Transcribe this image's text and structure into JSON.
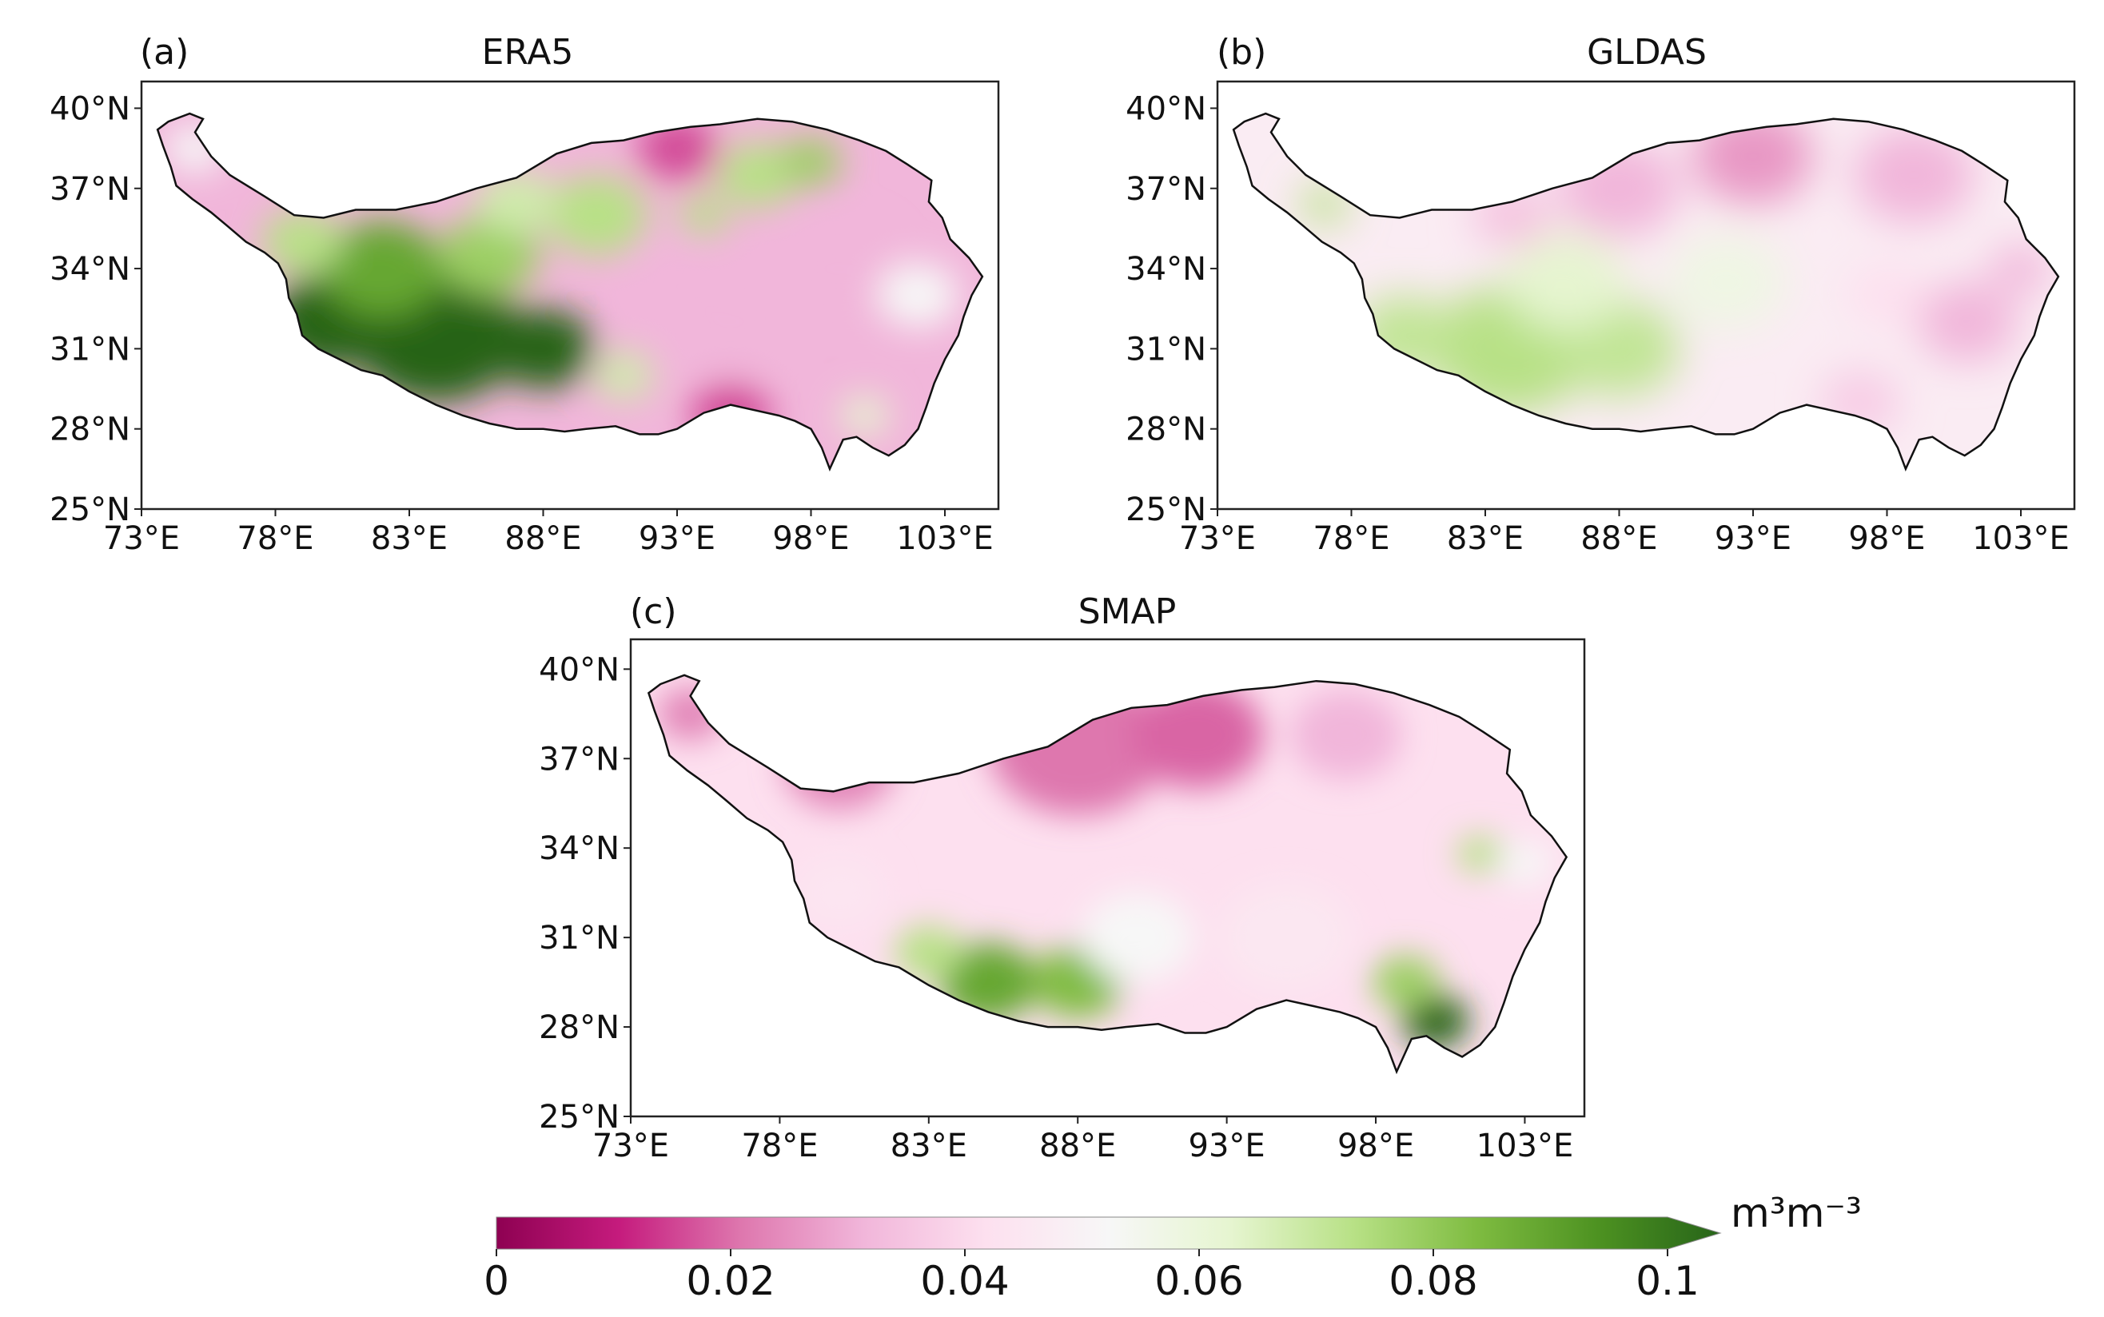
{
  "figure": {
    "panels": [
      {
        "tag": "(a)",
        "title": "ERA5",
        "x_ticks": [
          "73°E",
          "78°E",
          "83°E",
          "88°E",
          "93°E",
          "98°E",
          "103°E"
        ],
        "y_ticks": [
          "40°N",
          "37°N",
          "34°N",
          "31°N",
          "28°N",
          "25°N"
        ]
      },
      {
        "tag": "(b)",
        "title": "GLDAS",
        "x_ticks": [
          "73°E",
          "78°E",
          "83°E",
          "88°E",
          "93°E",
          "98°E",
          "103°E"
        ],
        "y_ticks": [
          "40°N",
          "37°N",
          "34°N",
          "31°N",
          "28°N",
          "25°N"
        ]
      },
      {
        "tag": "(c)",
        "title": "SMAP",
        "x_ticks": [
          "73°E",
          "78°E",
          "83°E",
          "88°E",
          "93°E",
          "98°E",
          "103°E"
        ],
        "y_ticks": [
          "40°N",
          "37°N",
          "34°N",
          "31°N",
          "28°N",
          "25°N"
        ]
      }
    ],
    "colorbar": {
      "ticks": [
        "0",
        "0.02",
        "0.04",
        "0.06",
        "0.08",
        "0.1"
      ],
      "unit": "m³m⁻³",
      "colors": [
        "#8e0152",
        "#c51b7d",
        "#de77ae",
        "#f1b6da",
        "#fde0ef",
        "#f7f7f7",
        "#e6f5d0",
        "#b8e186",
        "#7fbc41",
        "#4d9221",
        "#276419"
      ]
    }
  },
  "chart_data": [
    {
      "type": "heatmap",
      "title": "ERA5",
      "tag": "(a)",
      "xlabel": "",
      "ylabel": "",
      "xlim": [
        73,
        105
      ],
      "ylim": [
        25,
        41
      ],
      "x_ticks": [
        73,
        78,
        83,
        88,
        93,
        98,
        103
      ],
      "y_ticks": [
        25,
        28,
        31,
        34,
        37,
        40
      ],
      "value_range": [
        0,
        0.1
      ],
      "unit": "m3m-3",
      "pattern": "high (~0.1) over western/southern plateau (80-90E, 29-34N); low (~0.01-0.03) over east and northeast"
    },
    {
      "type": "heatmap",
      "title": "GLDAS",
      "tag": "(b)",
      "xlabel": "",
      "ylabel": "",
      "xlim": [
        73,
        105
      ],
      "ylim": [
        25,
        41
      ],
      "x_ticks": [
        73,
        78,
        83,
        88,
        93,
        98,
        103
      ],
      "y_ticks": [
        25,
        28,
        31,
        34,
        37,
        40
      ],
      "value_range": [
        0,
        0.1
      ],
      "unit": "m3m-3",
      "pattern": "moderate (~0.06-0.07) south-central band; low (~0.02-0.03) north and east"
    },
    {
      "type": "heatmap",
      "title": "SMAP",
      "tag": "(c)",
      "xlabel": "",
      "ylabel": "",
      "xlim": [
        73,
        105
      ],
      "ylim": [
        25,
        41
      ],
      "x_ticks": [
        73,
        78,
        83,
        88,
        93,
        98,
        103
      ],
      "y_ticks": [
        25,
        28,
        31,
        34,
        37,
        40
      ],
      "value_range": [
        0,
        0.1
      ],
      "unit": "m3m-3",
      "pattern": "low (~0.02) northern plateau; high (~0.08-0.1) southern strip 82-91E and southeast 98-101E"
    }
  ]
}
